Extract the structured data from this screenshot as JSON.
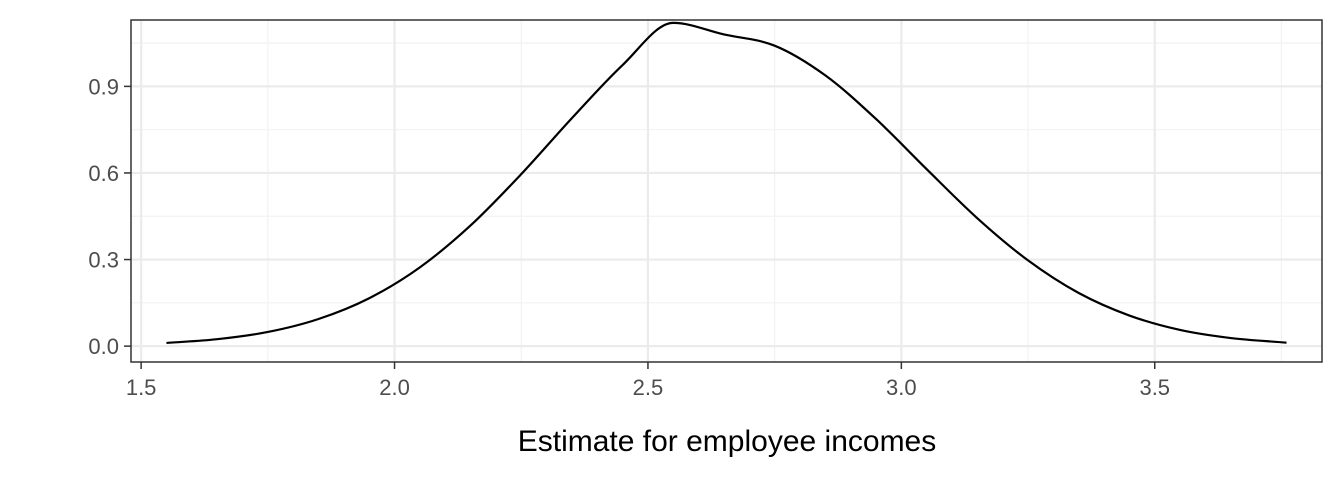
{
  "chart_data": {
    "type": "line",
    "title": "",
    "xlabel": "Estimate for employee incomes",
    "ylabel": "",
    "xlim": [
      1.48,
      3.83
    ],
    "ylim": [
      -0.055,
      1.13
    ],
    "x_ticks": [
      1.5,
      2.0,
      2.5,
      3.0,
      3.5
    ],
    "x_tick_labels": [
      "1.5",
      "2.0",
      "2.5",
      "3.0",
      "3.5"
    ],
    "y_ticks": [
      0.0,
      0.3,
      0.6,
      0.9
    ],
    "y_tick_labels": [
      "0.0",
      "0.3",
      "0.6",
      "0.9"
    ],
    "grid": true,
    "legend": "none",
    "series": [
      {
        "color": "#000000",
        "x": [
          1.55,
          1.65,
          1.75,
          1.85,
          1.95,
          2.05,
          2.15,
          2.25,
          2.35,
          2.45,
          2.55,
          2.65,
          2.75,
          2.85,
          2.95,
          3.05,
          3.15,
          3.25,
          3.35,
          3.45,
          3.55,
          3.65,
          3.76
        ],
        "y": [
          0.011,
          0.024,
          0.049,
          0.094,
          0.166,
          0.273,
          0.418,
          0.596,
          0.79,
          0.974,
          1.12,
          1.08,
          1.041,
          0.938,
          0.787,
          0.613,
          0.443,
          0.297,
          0.184,
          0.106,
          0.056,
          0.028,
          0.012
        ]
      }
    ]
  }
}
